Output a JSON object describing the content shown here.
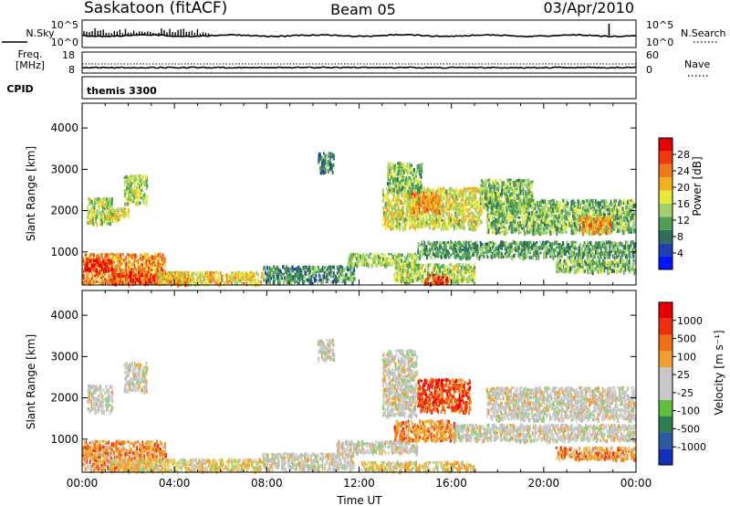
{
  "header": {
    "station": "Saskatoon (fitACF)",
    "beam": "Beam 05",
    "date": "03/Apr/2010"
  },
  "top_strips": {
    "noise": {
      "left_label": "N.Sky",
      "left_ticks": [
        "10^5",
        "10^0"
      ],
      "right_label": "N.Search",
      "right_ticks": [
        "10^5",
        "10^0"
      ]
    },
    "freq": {
      "left_label_line1": "Freq.",
      "left_label_line2": "[MHz]",
      "left_ticks": [
        "18",
        "8"
      ],
      "right_label": "Nave",
      "right_ticks": [
        "60",
        "0"
      ]
    },
    "cpid": {
      "label": "CPID",
      "program": "themis 3300"
    }
  },
  "colorbars": {
    "power": {
      "label": "Power [dB]",
      "tick_labels": [
        "28",
        "24",
        "20",
        "16",
        "12",
        "8",
        "4"
      ],
      "colors": [
        "#0014ff",
        "#1f3fb0",
        "#2e6e5c",
        "#4f9e55",
        "#9fd06b",
        "#e8e83a",
        "#f0b020",
        "#ef7a1a",
        "#ee3a10",
        "#e80000"
      ]
    },
    "velocity": {
      "label": "Velocity [m s⁻¹]",
      "tick_labels": [
        "1000",
        "500",
        "100",
        "25",
        "-25",
        "-100",
        "-500",
        "-1000"
      ],
      "colors": [
        "#1530b8",
        "#2a5aa0",
        "#2e7d4f",
        "#5fbf3a",
        "#c8c8c8",
        "#c8c8c8",
        "#f0a030",
        "#f07018",
        "#ee3010",
        "#e80000"
      ]
    }
  },
  "chart_data": [
    {
      "type": "heatmap",
      "name": "power-panel",
      "ylabel": "Slant Range [km]",
      "y_ticks": [
        1000,
        2000,
        3000,
        4000
      ],
      "ylim": [
        200,
        4600
      ],
      "xlim": [
        0,
        24
      ],
      "colorbar_range": [
        0,
        30
      ],
      "echo_regions": [
        {
          "t0": 0.0,
          "t1": 3.6,
          "r0": 280,
          "r1": 1000,
          "level": 22
        },
        {
          "t0": 0.0,
          "t1": 1.3,
          "r0": 580,
          "r1": 860,
          "level": 29
        },
        {
          "t0": 1.2,
          "t1": 4.6,
          "r0": 260,
          "r1": 560,
          "level": 26
        },
        {
          "t0": 3.2,
          "t1": 7.8,
          "r0": 260,
          "r1": 560,
          "level": 18
        },
        {
          "t0": 0.2,
          "t1": 1.3,
          "r0": 1700,
          "r1": 2350,
          "level": 14
        },
        {
          "t0": 1.0,
          "t1": 2.0,
          "r0": 1800,
          "r1": 2100,
          "level": 16
        },
        {
          "t0": 1.8,
          "t1": 2.8,
          "r0": 2200,
          "r1": 2900,
          "level": 14
        },
        {
          "t0": 10.2,
          "t1": 10.9,
          "r0": 2950,
          "r1": 3450,
          "level": 8
        },
        {
          "t0": 7.8,
          "t1": 11.8,
          "r0": 300,
          "r1": 700,
          "level": 9
        },
        {
          "t0": 11.5,
          "t1": 14.5,
          "r0": 700,
          "r1": 1000,
          "level": 14
        },
        {
          "t0": 13.0,
          "t1": 17.3,
          "r0": 1600,
          "r1": 2600,
          "level": 16
        },
        {
          "t0": 14.2,
          "t1": 15.5,
          "r0": 2000,
          "r1": 2500,
          "level": 22
        },
        {
          "t0": 13.2,
          "t1": 14.7,
          "r0": 2500,
          "r1": 3200,
          "level": 12
        },
        {
          "t0": 14.5,
          "t1": 24.0,
          "r0": 900,
          "r1": 1300,
          "level": 10
        },
        {
          "t0": 13.5,
          "t1": 17.0,
          "r0": 300,
          "r1": 750,
          "level": 14
        },
        {
          "t0": 14.8,
          "t1": 15.8,
          "r0": 260,
          "r1": 500,
          "level": 27
        },
        {
          "t0": 17.5,
          "t1": 24.0,
          "r0": 1500,
          "r1": 2300,
          "level": 12
        },
        {
          "t0": 21.5,
          "t1": 22.9,
          "r0": 1500,
          "r1": 1900,
          "level": 22
        },
        {
          "t0": 20.5,
          "t1": 24.0,
          "r0": 550,
          "r1": 850,
          "level": 12
        },
        {
          "t0": 17.2,
          "t1": 19.5,
          "r0": 2100,
          "r1": 2800,
          "level": 12
        }
      ]
    },
    {
      "type": "heatmap",
      "name": "velocity-panel",
      "ylabel": "Slant Range [km]",
      "xlabel": "Time UT",
      "x_ticks": [
        "00:00",
        "04:00",
        "08:00",
        "12:00",
        "16:00",
        "20:00",
        "00:00"
      ],
      "y_ticks": [
        1000,
        2000,
        3000,
        4000
      ],
      "ylim": [
        200,
        4600
      ],
      "xlim": [
        0,
        24
      ],
      "echo_regions": [
        {
          "t0": 0.0,
          "t1": 3.6,
          "r0": 280,
          "r1": 1000,
          "vclass": "orange"
        },
        {
          "t0": 0.0,
          "t1": 1.3,
          "r0": 580,
          "r1": 860,
          "vclass": "orange"
        },
        {
          "t0": 1.2,
          "t1": 7.8,
          "r0": 260,
          "r1": 560,
          "vclass": "orange-light"
        },
        {
          "t0": 0.2,
          "t1": 1.3,
          "r0": 1700,
          "r1": 2350,
          "vclass": "grey"
        },
        {
          "t0": 1.8,
          "t1": 2.8,
          "r0": 2200,
          "r1": 2900,
          "vclass": "grey"
        },
        {
          "t0": 10.2,
          "t1": 10.9,
          "r0": 2950,
          "r1": 3450,
          "vclass": "grey"
        },
        {
          "t0": 7.8,
          "t1": 11.8,
          "r0": 300,
          "r1": 700,
          "vclass": "grey"
        },
        {
          "t0": 11.0,
          "t1": 14.5,
          "r0": 700,
          "r1": 1000,
          "vclass": "grey"
        },
        {
          "t0": 13.0,
          "t1": 14.5,
          "r0": 1600,
          "r1": 3200,
          "vclass": "grey"
        },
        {
          "t0": 13.5,
          "t1": 16.2,
          "r0": 1000,
          "r1": 1500,
          "vclass": "orange"
        },
        {
          "t0": 14.5,
          "t1": 16.8,
          "r0": 1700,
          "r1": 2500,
          "vclass": "red"
        },
        {
          "t0": 16.0,
          "t1": 24.0,
          "r0": 1000,
          "r1": 1400,
          "vclass": "grey"
        },
        {
          "t0": 17.5,
          "t1": 24.0,
          "r0": 1500,
          "r1": 2300,
          "vclass": "grey"
        },
        {
          "t0": 20.5,
          "t1": 24.0,
          "r0": 550,
          "r1": 850,
          "vclass": "orange"
        },
        {
          "t0": 12.0,
          "t1": 17.0,
          "r0": 260,
          "r1": 500,
          "vclass": "orange-light"
        }
      ]
    }
  ]
}
